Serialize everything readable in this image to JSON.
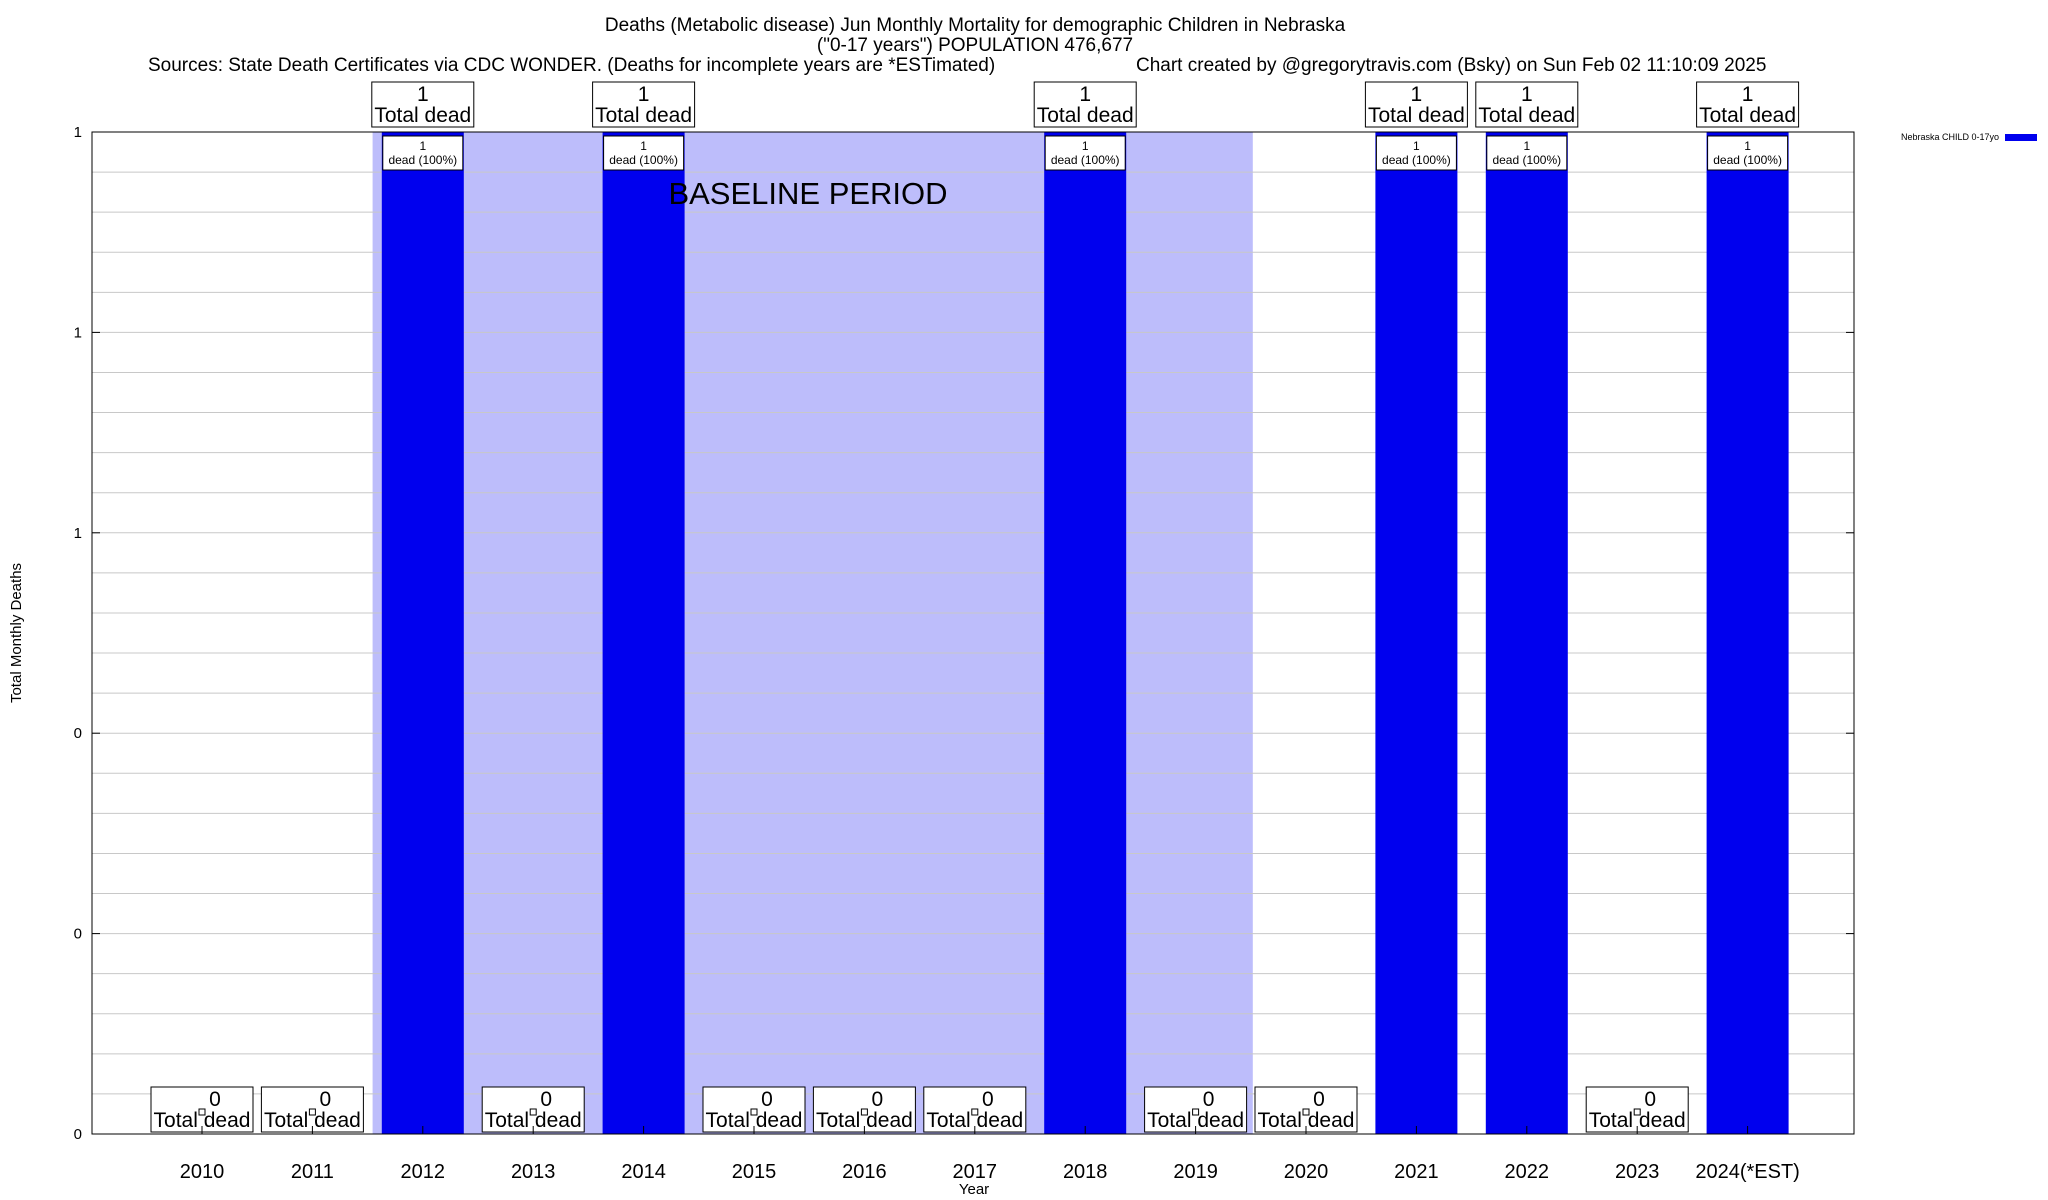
{
  "chart_data": {
    "type": "bar",
    "title_lines": [
      "Deaths (Metabolic disease) Jun Monthly Mortality for demographic Children in Nebraska",
      "(\"0-17 years\") POPULATION 476,677"
    ],
    "subtitle_left": "Sources: State Death Certificates via CDC WONDER. (Deaths for incomplete years are *ESTimated)",
    "subtitle_right": "Chart created by @gregorytravis.com (Bsky) on Sun Feb 02 11:10:09 2025",
    "xlabel": "Year",
    "ylabel": "Total Monthly Deaths",
    "categories": [
      "2010",
      "2011",
      "2012",
      "2013",
      "2014",
      "2015",
      "2016",
      "2017",
      "2018",
      "2019",
      "2020",
      "2021",
      "2022",
      "2023",
      "2024(*EST)"
    ],
    "series": [
      {
        "name": "Nebraska CHILD 0-17yo",
        "color": "#0000ee",
        "values": [
          0,
          0,
          1,
          0,
          1,
          0,
          0,
          0,
          1,
          0,
          0,
          1,
          1,
          0,
          1
        ]
      }
    ],
    "total_label": "Total dead",
    "bar_label_suffix": "dead (100%)",
    "ytick_labels": [
      "0",
      "0",
      "0",
      "1",
      "1",
      "1"
    ],
    "ylim": [
      0,
      1
    ],
    "baseline_period": {
      "label": "BASELINE PERIOD",
      "from": "2012",
      "to": "2019",
      "color": "#bdbdfb"
    },
    "grid": true,
    "legend_position": "top-right"
  }
}
